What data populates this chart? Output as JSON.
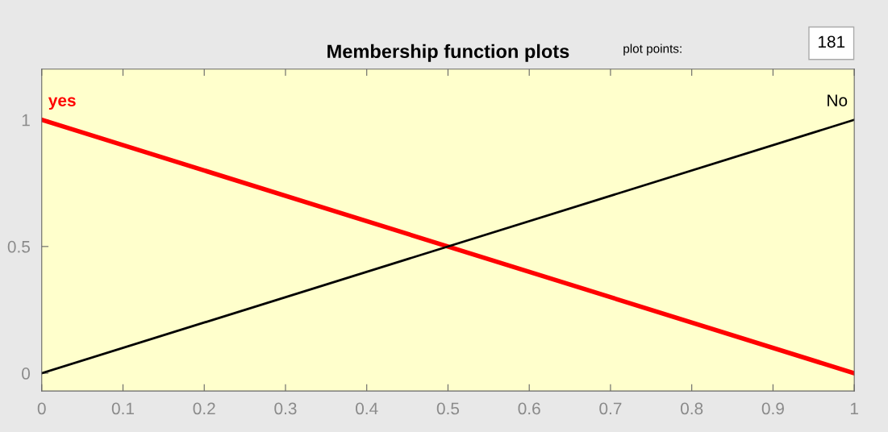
{
  "chart_data": {
    "type": "line",
    "title": "Membership function plots",
    "x": [
      0,
      1
    ],
    "series": [
      {
        "name": "yes",
        "color": "#ff0000",
        "values": [
          1,
          0
        ]
      },
      {
        "name": "No",
        "color": "#000000",
        "values": [
          0,
          1
        ]
      }
    ],
    "xlim": [
      0,
      1
    ],
    "xticks": [
      0,
      0.1,
      0.2,
      0.3,
      0.4,
      0.5,
      0.6,
      0.7,
      0.8,
      0.9,
      1
    ],
    "ylim": [
      -0.07,
      1.2
    ],
    "yticks": [
      0,
      {
        "value": 0.5,
        "label": "0.5"
      },
      1
    ],
    "annotations": [
      "plot points:",
      "181"
    ],
    "grid": false,
    "legend": false
  }
}
